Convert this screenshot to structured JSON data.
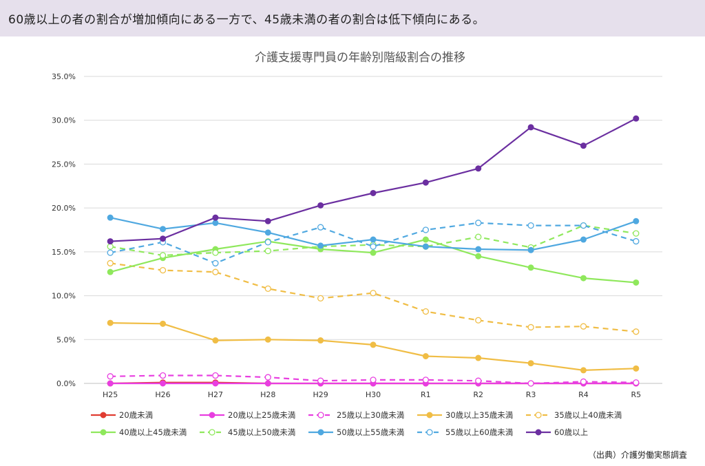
{
  "headline": "60歳以上の者の割合が増加傾向にある一方で、45歳未満の者の割合は低下傾向にある。",
  "source": "（出典）介護労働実態調査",
  "chart_data": {
    "type": "line",
    "title": "介護支援専門員の年齢別階級割合の推移",
    "xlabel": "",
    "ylabel": "",
    "categories": [
      "H25",
      "H26",
      "H27",
      "H28",
      "H29",
      "H30",
      "R1",
      "R2",
      "R3",
      "R4",
      "R5"
    ],
    "ylim": [
      0,
      35
    ],
    "yticks": [
      0,
      5,
      10,
      15,
      20,
      25,
      30,
      35
    ],
    "ytick_labels": [
      "0.0%",
      "5.0%",
      "10.0%",
      "15.0%",
      "20.0%",
      "25.0%",
      "30.0%",
      "35.0%"
    ],
    "grid": true,
    "legend_position": "bottom",
    "series": [
      {
        "name": "20歳未満",
        "color": "#e03c31",
        "dashed": false,
        "marker": "filled",
        "values": [
          0.0,
          0.1,
          0.1,
          0.0,
          0.0,
          0.0,
          0.0,
          0.0,
          0.0,
          0.0,
          0.0
        ]
      },
      {
        "name": "20歳以上25歳未満",
        "color": "#e83ee0",
        "dashed": false,
        "marker": "filled",
        "values": [
          0.0,
          0.0,
          0.0,
          0.0,
          0.0,
          0.0,
          0.0,
          0.0,
          0.0,
          0.0,
          0.0
        ]
      },
      {
        "name": "25歳以上30歳未満",
        "color": "#e83ee0",
        "dashed": true,
        "marker": "open",
        "values": [
          0.8,
          0.9,
          0.9,
          0.7,
          0.3,
          0.4,
          0.4,
          0.3,
          0.0,
          0.2,
          0.1
        ]
      },
      {
        "name": "30歳以上35歳未満",
        "color": "#f0bd45",
        "dashed": false,
        "marker": "filled",
        "values": [
          6.9,
          6.8,
          4.9,
          5.0,
          4.9,
          4.4,
          3.1,
          2.9,
          2.3,
          1.5,
          1.7
        ]
      },
      {
        "name": "35歳以上40歳未満",
        "color": "#f0bd45",
        "dashed": true,
        "marker": "open",
        "values": [
          13.7,
          12.9,
          12.7,
          10.8,
          9.7,
          10.3,
          8.2,
          7.2,
          6.4,
          6.5,
          5.9
        ]
      },
      {
        "name": "40歳以上45歳未満",
        "color": "#8fe85c",
        "dashed": false,
        "marker": "filled",
        "values": [
          12.7,
          14.3,
          15.3,
          16.2,
          15.3,
          14.9,
          16.4,
          14.5,
          13.2,
          12.0,
          11.5
        ]
      },
      {
        "name": "45歳以上50歳未満",
        "color": "#8fe85c",
        "dashed": true,
        "marker": "open",
        "values": [
          15.6,
          14.6,
          14.9,
          15.1,
          15.6,
          15.8,
          15.6,
          16.7,
          15.5,
          18.0,
          17.1
        ]
      },
      {
        "name": "50歳以上55歳未満",
        "color": "#4fa8e0",
        "dashed": false,
        "marker": "filled",
        "values": [
          18.9,
          17.6,
          18.3,
          17.2,
          15.7,
          16.4,
          15.6,
          15.3,
          15.2,
          16.4,
          18.5
        ]
      },
      {
        "name": "55歳以上60歳未満",
        "color": "#4fa8e0",
        "dashed": true,
        "marker": "open",
        "values": [
          14.9,
          16.1,
          13.7,
          16.1,
          17.8,
          15.6,
          17.5,
          18.3,
          18.0,
          18.0,
          16.2
        ]
      },
      {
        "name": "60歳以上",
        "color": "#6b2fa0",
        "dashed": false,
        "marker": "filled",
        "values": [
          16.2,
          16.5,
          18.9,
          18.5,
          20.3,
          21.7,
          22.9,
          24.5,
          29.2,
          27.1,
          30.2
        ]
      }
    ]
  }
}
